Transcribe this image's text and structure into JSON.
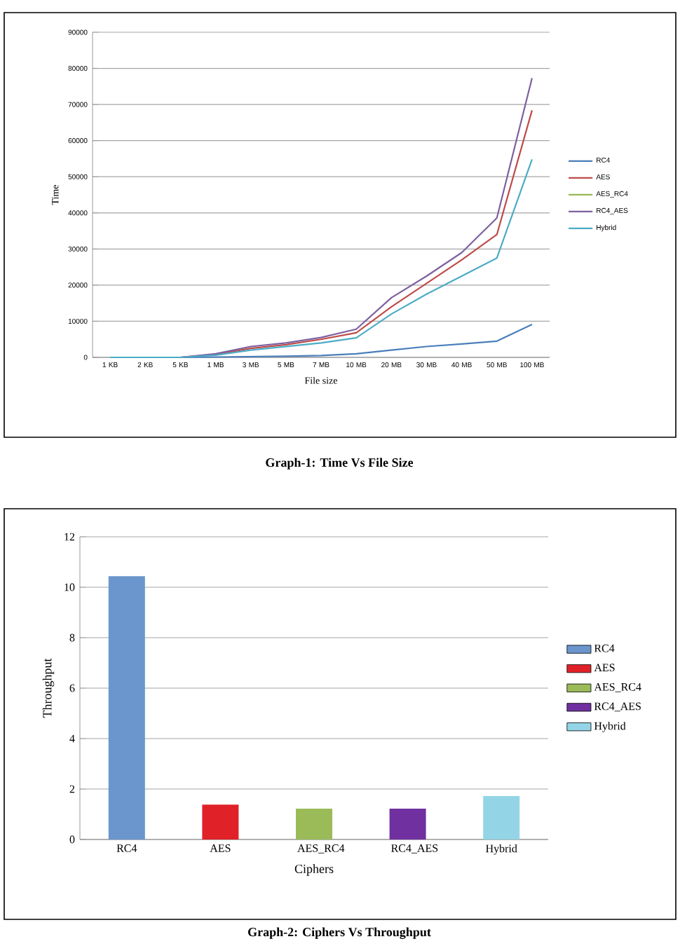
{
  "chart_data": [
    {
      "type": "line",
      "title": "Graph-1: Time Vs File Size",
      "xlabel": "File size",
      "ylabel": "Time",
      "categories": [
        "1 KB",
        "2 KB",
        "5 KB",
        "1 MB",
        "3 MB",
        "5 MB",
        "7 MB",
        "10 MB",
        "20 MB",
        "30 MB",
        "40 MB",
        "50 MB",
        "100 MB"
      ],
      "series": [
        {
          "name": "RC4",
          "color": "#4a7ebb",
          "values": [
            0,
            0,
            0,
            100,
            200,
            300,
            500,
            1000,
            2000,
            3000,
            3700,
            4500,
            9100
          ]
        },
        {
          "name": "AES",
          "color": "#be4b48",
          "values": [
            null,
            null,
            0,
            800,
            2500,
            3500,
            5000,
            6800,
            14000,
            20500,
            27000,
            34000,
            68400
          ]
        },
        {
          "name": "AES_RC4",
          "color": "#98b954",
          "values": [
            null,
            null,
            null,
            null,
            null,
            null,
            null,
            null,
            null,
            null,
            null,
            null,
            null
          ]
        },
        {
          "name": "RC4_AES",
          "color": "#7d60a0",
          "values": [
            0,
            0,
            0,
            1000,
            3000,
            4000,
            5500,
            7800,
            16500,
            22500,
            29000,
            38600,
            77300
          ]
        },
        {
          "name": "Hybrid",
          "color": "#4bacc6",
          "values": [
            0,
            0,
            0,
            600,
            2000,
            3000,
            4000,
            5400,
            12000,
            17500,
            22500,
            27500,
            54800
          ]
        }
      ],
      "ylim": [
        0,
        90000
      ],
      "yticks": [
        0,
        10000,
        20000,
        30000,
        40000,
        50000,
        60000,
        70000,
        80000,
        90000
      ],
      "grid": "y",
      "legend": "right"
    },
    {
      "type": "bar",
      "title": "Graph-2: Ciphers Vs Throughput",
      "xlabel": "Ciphers",
      "ylabel": "Throughput",
      "categories": [
        "RC4",
        "AES",
        "AES_RC4",
        "RC4_AES",
        "Hybrid"
      ],
      "series": [
        {
          "name": "RC4",
          "color": "#6a96cd",
          "values": [
            10.44,
            null,
            null,
            null,
            null
          ]
        },
        {
          "name": "AES",
          "color": "#e02127",
          "values": [
            null,
            1.38,
            null,
            null,
            null
          ]
        },
        {
          "name": "AES_RC4",
          "color": "#9bbb59",
          "values": [
            null,
            null,
            1.22,
            null,
            null
          ]
        },
        {
          "name": "RC4_AES",
          "color": "#7030a0",
          "values": [
            null,
            null,
            null,
            1.22,
            null
          ]
        },
        {
          "name": "Hybrid",
          "color": "#93d5e6",
          "values": [
            null,
            null,
            null,
            null,
            1.72
          ]
        }
      ],
      "ylim": [
        0,
        12
      ],
      "yticks": [
        0,
        2,
        4,
        6,
        8,
        10,
        12
      ],
      "grid": "y",
      "legend": "right"
    }
  ]
}
